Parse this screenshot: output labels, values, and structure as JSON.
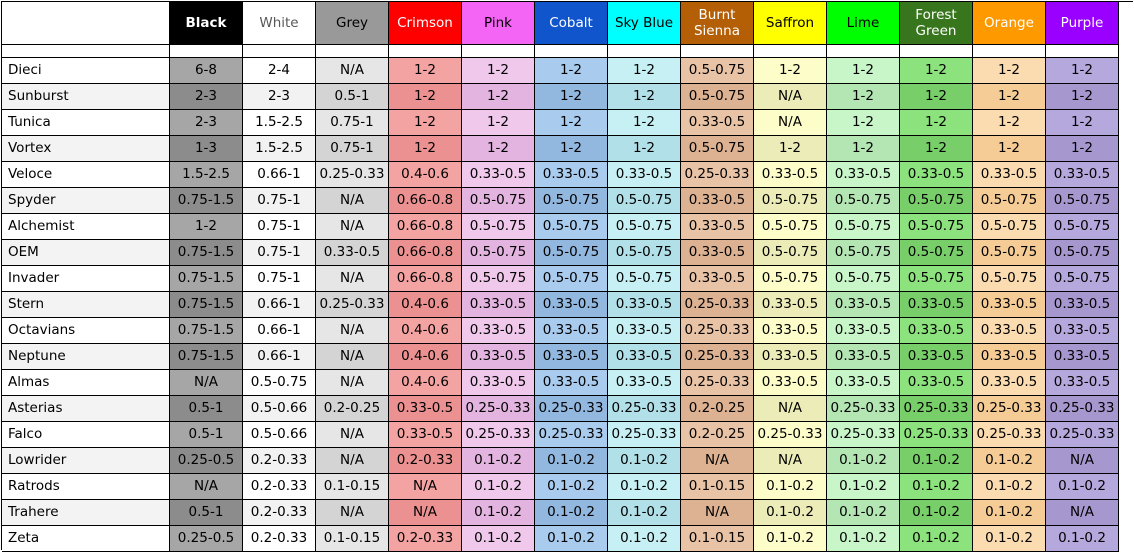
{
  "columns": [
    {
      "label": "Black",
      "head_bg": "#000000",
      "head_fg": "#ffffff",
      "bold": true,
      "odd": "#a6a6a6",
      "even": "#8c8c8c"
    },
    {
      "label": "White",
      "head_bg": "#ffffff",
      "head_fg": "#595959",
      "bold": false,
      "odd": "#ffffff",
      "even": "#f2f2f2"
    },
    {
      "label": "Grey",
      "head_bg": "#999999",
      "head_fg": "#000000",
      "bold": false,
      "odd": "#e6e6e6",
      "even": "#d4d4d4"
    },
    {
      "label": "Crimson",
      "head_bg": "#ff0000",
      "head_fg": "#ffffff",
      "bold": false,
      "odd": "#f4a3a3",
      "even": "#ec9191"
    },
    {
      "label": "Pink",
      "head_bg": "#f565f5",
      "head_fg": "#000000",
      "bold": false,
      "odd": "#f0c8ec",
      "even": "#e4b4e0"
    },
    {
      "label": "Cobalt",
      "head_bg": "#1155cc",
      "head_fg": "#ffffff",
      "bold": false,
      "odd": "#a8cbee",
      "even": "#92b8e0"
    },
    {
      "label": "Sky Blue",
      "head_bg": "#00ffff",
      "head_fg": "#000000",
      "bold": false,
      "odd": "#c6f0f3",
      "even": "#b2e0e8"
    },
    {
      "label": "Burnt Sienna",
      "head_bg": "#b45f06",
      "head_fg": "#ffffff",
      "bold": false,
      "odd": "#e9c3a6",
      "even": "#ddb293"
    },
    {
      "label": "Saffron",
      "head_bg": "#ffff00",
      "head_fg": "#000000",
      "bold": false,
      "odd": "#fdfdc9",
      "even": "#ececb8"
    },
    {
      "label": "Lime",
      "head_bg": "#00ff00",
      "head_fg": "#000000",
      "bold": false,
      "odd": "#c8f6c8",
      "even": "#b4e6b4"
    },
    {
      "label": "Forest Green",
      "head_bg": "#38761d",
      "head_fg": "#ffffff",
      "bold": false,
      "odd": "#8ce27c",
      "even": "#78cf6a"
    },
    {
      "label": "Orange",
      "head_bg": "#ff9900",
      "head_fg": "#ffffff",
      "bold": false,
      "odd": "#fbdcb0",
      "even": "#f5cc96"
    },
    {
      "label": "Purple",
      "head_bg": "#9900ff",
      "head_fg": "#ffffff",
      "bold": false,
      "odd": "#b5a8dc",
      "even": "#a697cf"
    }
  ],
  "rows": [
    {
      "name": "Dieci",
      "values": [
        "6-8",
        "2-4",
        "N/A",
        "1-2",
        "1-2",
        "1-2",
        "1-2",
        "0.5-0.75",
        "1-2",
        "1-2",
        "1-2",
        "1-2",
        "1-2"
      ]
    },
    {
      "name": "Sunburst",
      "values": [
        "2-3",
        "2-3",
        "0.5-1",
        "1-2",
        "1-2",
        "1-2",
        "1-2",
        "0.5-0.75",
        "N/A",
        "1-2",
        "1-2",
        "1-2",
        "1-2"
      ]
    },
    {
      "name": "Tunica",
      "values": [
        "2-3",
        "1.5-2.5",
        "0.75-1",
        "1-2",
        "1-2",
        "1-2",
        "1-2",
        "0.33-0.5",
        "N/A",
        "1-2",
        "1-2",
        "1-2",
        "1-2"
      ]
    },
    {
      "name": "Vortex",
      "values": [
        "1-3",
        "1.5-2.5",
        "0.75-1",
        "1-2",
        "1-2",
        "1-2",
        "1-2",
        "0.5-0.75",
        "1-2",
        "1-2",
        "1-2",
        "1-2",
        "1-2"
      ]
    },
    {
      "name": "Veloce",
      "values": [
        "1.5-2.5",
        "0.66-1",
        "0.25-0.33",
        "0.4-0.6",
        "0.33-0.5",
        "0.33-0.5",
        "0.33-0.5",
        "0.25-0.33",
        "0.33-0.5",
        "0.33-0.5",
        "0.33-0.5",
        "0.33-0.5",
        "0.33-0.5"
      ]
    },
    {
      "name": "Spyder",
      "values": [
        "0.75-1.5",
        "0.75-1",
        "N/A",
        "0.66-0.8",
        "0.5-0.75",
        "0.5-0.75",
        "0.5-0.75",
        "0.33-0.5",
        "0.5-0.75",
        "0.5-0.75",
        "0.5-0.75",
        "0.5-0.75",
        "0.5-0.75"
      ]
    },
    {
      "name": "Alchemist",
      "values": [
        "1-2",
        "0.75-1",
        "N/A",
        "0.66-0.8",
        "0.5-0.75",
        "0.5-0.75",
        "0.5-0.75",
        "0.33-0.5",
        "0.5-0.75",
        "0.5-0.75",
        "0.5-0.75",
        "0.5-0.75",
        "0.5-0.75"
      ]
    },
    {
      "name": "OEM",
      "values": [
        "0.75-1.5",
        "0.75-1",
        "0.33-0.5",
        "0.66-0.8",
        "0.5-0.75",
        "0.5-0.75",
        "0.5-0.75",
        "0.33-0.5",
        "0.5-0.75",
        "0.5-0.75",
        "0.5-0.75",
        "0.5-0.75",
        "0.5-0.75"
      ]
    },
    {
      "name": "Invader",
      "values": [
        "0.75-1.5",
        "0.75-1",
        "N/A",
        "0.66-0.8",
        "0.5-0.75",
        "0.5-0.75",
        "0.5-0.75",
        "0.33-0.5",
        "0.5-0.75",
        "0.5-0.75",
        "0.5-0.75",
        "0.5-0.75",
        "0.5-0.75"
      ]
    },
    {
      "name": "Stern",
      "values": [
        "0.75-1.5",
        "0.66-1",
        "0.25-0.33",
        "0.4-0.6",
        "0.33-0.5",
        "0.33-0.5",
        "0.33-0.5",
        "0.25-0.33",
        "0.33-0.5",
        "0.33-0.5",
        "0.33-0.5",
        "0.33-0.5",
        "0.33-0.5"
      ]
    },
    {
      "name": "Octavians",
      "values": [
        "0.75-1.5",
        "0.66-1",
        "N/A",
        "0.4-0.6",
        "0.33-0.5",
        "0.33-0.5",
        "0.33-0.5",
        "0.25-0.33",
        "0.33-0.5",
        "0.33-0.5",
        "0.33-0.5",
        "0.33-0.5",
        "0.33-0.5"
      ]
    },
    {
      "name": "Neptune",
      "values": [
        "0.75-1.5",
        "0.66-1",
        "N/A",
        "0.4-0.6",
        "0.33-0.5",
        "0.33-0.5",
        "0.33-0.5",
        "0.25-0.33",
        "0.33-0.5",
        "0.33-0.5",
        "0.33-0.5",
        "0.33-0.5",
        "0.33-0.5"
      ]
    },
    {
      "name": "Almas",
      "values": [
        "N/A",
        "0.5-0.75",
        "N/A",
        "0.4-0.6",
        "0.33-0.5",
        "0.33-0.5",
        "0.33-0.5",
        "0.25-0.33",
        "0.33-0.5",
        "0.33-0.5",
        "0.33-0.5",
        "0.33-0.5",
        "0.33-0.5"
      ]
    },
    {
      "name": "Asterias",
      "values": [
        "0.5-1",
        "0.5-0.66",
        "0.2-0.25",
        "0.33-0.5",
        "0.25-0.33",
        "0.25-0.33",
        "0.25-0.33",
        "0.2-0.25",
        "N/A",
        "0.25-0.33",
        "0.25-0.33",
        "0.25-0.33",
        "0.25-0.33"
      ]
    },
    {
      "name": "Falco",
      "values": [
        "0.5-1",
        "0.5-0.66",
        "N/A",
        "0.33-0.5",
        "0.25-0.33",
        "0.25-0.33",
        "0.25-0.33",
        "0.2-0.25",
        "0.25-0.33",
        "0.25-0.33",
        "0.25-0.33",
        "0.25-0.33",
        "0.25-0.33"
      ]
    },
    {
      "name": "Lowrider",
      "values": [
        "0.25-0.5",
        "0.2-0.33",
        "N/A",
        "0.2-0.33",
        "0.1-0.2",
        "0.1-0.2",
        "0.1-0.2",
        "N/A",
        "N/A",
        "0.1-0.2",
        "0.1-0.2",
        "0.1-0.2",
        "N/A"
      ]
    },
    {
      "name": "Ratrods",
      "values": [
        "N/A",
        "0.2-0.33",
        "0.1-0.15",
        "N/A",
        "0.1-0.2",
        "0.1-0.2",
        "0.1-0.2",
        "0.1-0.15",
        "0.1-0.2",
        "0.1-0.2",
        "0.1-0.2",
        "0.1-0.2",
        "0.1-0.2"
      ]
    },
    {
      "name": "Trahere",
      "values": [
        "0.5-1",
        "0.2-0.33",
        "N/A",
        "N/A",
        "0.1-0.2",
        "0.1-0.2",
        "0.1-0.2",
        "N/A",
        "0.1-0.2",
        "0.1-0.2",
        "0.1-0.2",
        "0.1-0.2",
        "N/A"
      ]
    },
    {
      "name": "Zeta",
      "values": [
        "0.25-0.5",
        "0.2-0.33",
        "0.1-0.15",
        "0.2-0.33",
        "0.1-0.2",
        "0.1-0.2",
        "0.1-0.2",
        "0.1-0.15",
        "0.1-0.2",
        "0.1-0.2",
        "0.1-0.2",
        "0.1-0.2",
        "0.1-0.2"
      ]
    }
  ],
  "name_column": {
    "odd": "#ffffff",
    "even": "#f3f3f3"
  }
}
